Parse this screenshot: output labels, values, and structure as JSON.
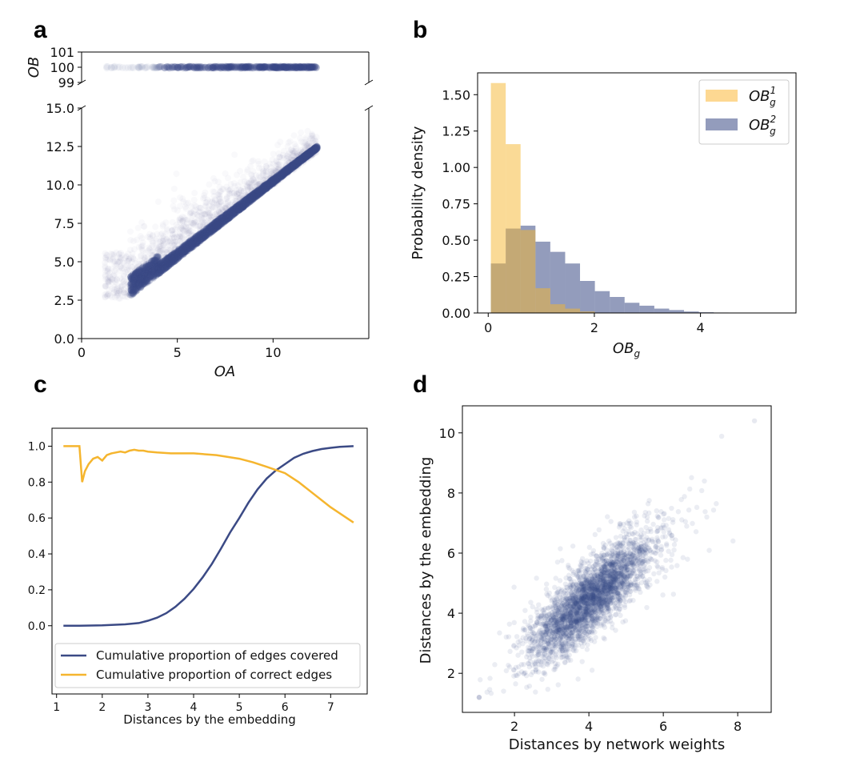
{
  "colors": {
    "navy": "#3b4a85",
    "orange": "#f5b52e",
    "orange_light": "#fdd892",
    "overlap": "#8e7b72"
  },
  "panel_labels": {
    "a": "a",
    "b": "b",
    "c": "c",
    "d": "d"
  },
  "chart_data": [
    {
      "id": "a",
      "type": "scatter",
      "title": "",
      "xlabel": "OA",
      "ylabel": "OB",
      "xlim": [
        0,
        15
      ],
      "ylim_lower": [
        0,
        15
      ],
      "ylim_upper": [
        99,
        101
      ],
      "x_ticks": [
        0,
        5,
        10
      ],
      "x_tick_labels": [
        "0",
        "5",
        "10"
      ],
      "y_ticks_lower": [
        0,
        2.5,
        5,
        7.5,
        10,
        12.5,
        15
      ],
      "y_tick_labels_lower": [
        "0.0",
        "2.5",
        "5.0",
        "7.5",
        "10.0",
        "12.5",
        "15.0"
      ],
      "y_ticks_upper": [
        99,
        100,
        101
      ],
      "y_tick_labels_upper": [
        "99",
        "100",
        "101"
      ],
      "broken_axis": true,
      "series": [
        {
          "name": "pairs",
          "relation": "OB rises with OA, dense band from OA 2.5 to 12.3",
          "x_range": [
            1,
            12.3
          ]
        },
        {
          "name": "no-edge pairs",
          "y": 100,
          "x_range": [
            1,
            12.3
          ]
        }
      ]
    },
    {
      "id": "b",
      "type": "bar",
      "xlabel": "OB_g",
      "ylabel": "Probability density",
      "xlim": [
        -0.2,
        5.8
      ],
      "ylim": [
        0,
        1.65
      ],
      "x_ticks": [
        0,
        2,
        4
      ],
      "x_tick_labels": [
        "0",
        "2",
        "4"
      ],
      "y_ticks": [
        0,
        0.25,
        0.5,
        0.75,
        1.0,
        1.25,
        1.5
      ],
      "y_tick_labels": [
        "0.00",
        "0.25",
        "0.50",
        "0.75",
        "1.00",
        "1.25",
        "1.50"
      ],
      "legend_position": "top-right",
      "series": [
        {
          "name": "OB_g^1",
          "label_base": "OB",
          "label_sup": "1",
          "label_sub": "g",
          "bins": [
            0.05,
            0.33,
            0.61,
            0.89,
            1.17,
            1.45,
            1.73,
            2.01
          ],
          "values": [
            1.58,
            1.16,
            0.57,
            0.17,
            0.06,
            0.03,
            0.01
          ]
        },
        {
          "name": "OB_g^2",
          "label_base": "OB",
          "label_sup": "2",
          "label_sub": "g",
          "bins": [
            0.05,
            0.33,
            0.61,
            0.89,
            1.17,
            1.45,
            1.73,
            2.01,
            2.29,
            2.57,
            2.85,
            3.13,
            3.41,
            3.69,
            3.97,
            4.25,
            4.53,
            4.81,
            5.09,
            5.37
          ],
          "values": [
            0.34,
            0.58,
            0.6,
            0.49,
            0.42,
            0.34,
            0.22,
            0.15,
            0.11,
            0.07,
            0.05,
            0.03,
            0.02,
            0.01,
            0.005,
            0.003,
            0.002,
            0.001,
            0.001
          ]
        }
      ]
    },
    {
      "id": "c",
      "type": "line",
      "xlabel": "Distances by the embedding",
      "ylabel": "",
      "xlim": [
        0.9,
        7.8
      ],
      "ylim": [
        -0.38,
        1.1
      ],
      "x_ticks": [
        1,
        2,
        3,
        4,
        5,
        6,
        7
      ],
      "x_tick_labels": [
        "1",
        "2",
        "3",
        "4",
        "5",
        "6",
        "7"
      ],
      "y_ticks": [
        0.0,
        0.2,
        0.4,
        0.6,
        0.8,
        1.0
      ],
      "y_tick_labels": [
        "0.0",
        "0.2",
        "0.4",
        "0.6",
        "0.8",
        "1.0"
      ],
      "legend_position": "lower-left",
      "series": [
        {
          "name": "Cumulative proportion of edges covered",
          "x": [
            1.15,
            1.5,
            2.0,
            2.5,
            2.8,
            3.0,
            3.2,
            3.4,
            3.6,
            3.8,
            4.0,
            4.2,
            4.4,
            4.6,
            4.8,
            5.0,
            5.2,
            5.4,
            5.6,
            5.8,
            6.0,
            6.2,
            6.4,
            6.6,
            6.8,
            7.0,
            7.2,
            7.5
          ],
          "y": [
            0.0,
            0.0,
            0.002,
            0.008,
            0.015,
            0.028,
            0.045,
            0.07,
            0.105,
            0.15,
            0.205,
            0.27,
            0.345,
            0.43,
            0.52,
            0.6,
            0.685,
            0.76,
            0.82,
            0.865,
            0.9,
            0.935,
            0.958,
            0.973,
            0.984,
            0.991,
            0.996,
            1.0
          ]
        },
        {
          "name": "Cumulative proportion of correct edges",
          "x": [
            1.15,
            1.5,
            1.56,
            1.62,
            1.7,
            1.8,
            1.9,
            2.0,
            2.1,
            2.2,
            2.3,
            2.4,
            2.5,
            2.6,
            2.7,
            2.8,
            2.9,
            3.0,
            3.2,
            3.5,
            4.0,
            4.5,
            5.0,
            5.3,
            5.6,
            6.0,
            6.3,
            6.6,
            7.0,
            7.5
          ],
          "y": [
            1.0,
            1.0,
            0.8,
            0.86,
            0.9,
            0.93,
            0.94,
            0.92,
            0.95,
            0.96,
            0.965,
            0.97,
            0.965,
            0.975,
            0.98,
            0.975,
            0.975,
            0.97,
            0.965,
            0.96,
            0.96,
            0.95,
            0.93,
            0.91,
            0.885,
            0.85,
            0.8,
            0.74,
            0.66,
            0.575
          ]
        }
      ]
    },
    {
      "id": "d",
      "type": "scatter",
      "xlabel": "Distances by network weights",
      "ylabel": "Distances by the embedding",
      "xlim": [
        0.6,
        8.9
      ],
      "ylim": [
        0.7,
        10.9
      ],
      "x_ticks": [
        2,
        4,
        6,
        8
      ],
      "x_tick_labels": [
        "2",
        "4",
        "6",
        "8"
      ],
      "y_ticks": [
        2,
        4,
        6,
        8,
        10
      ],
      "y_tick_labels": [
        "2",
        "4",
        "6",
        "8",
        "10"
      ],
      "series": [
        {
          "name": "node pairs",
          "relation": "positive linear, centre about (4, 4.5), x range 1 to 8.5, y range 1.2 to 10.4"
        }
      ]
    }
  ]
}
